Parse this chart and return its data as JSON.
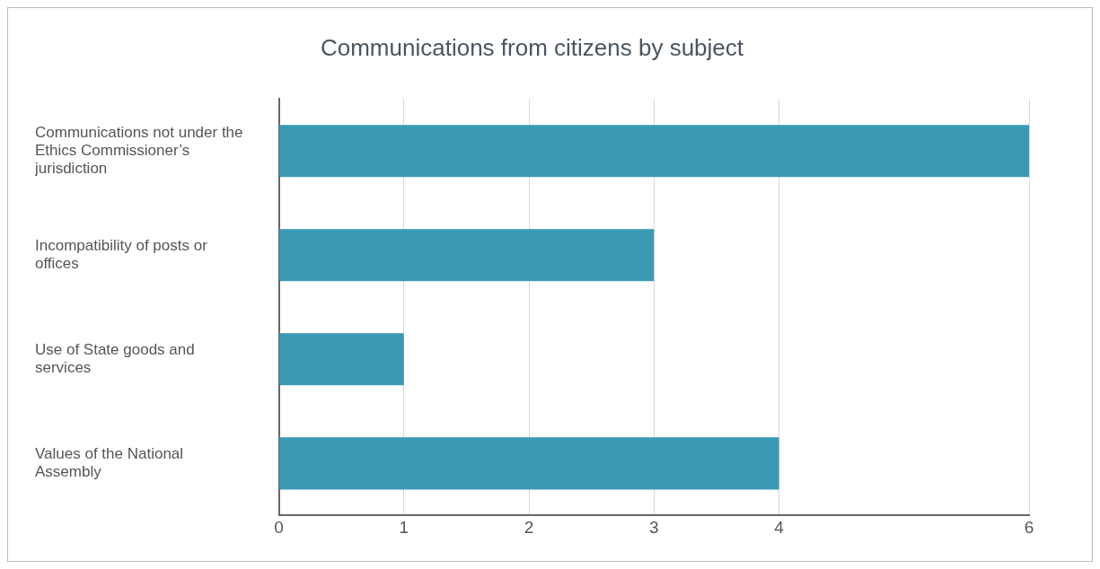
{
  "chart_data": {
    "type": "bar",
    "orientation": "horizontal",
    "title": "Communications from citizens by subject",
    "categories": [
      "Communications not under the Ethics Commissioner’s jurisdiction",
      "Incompatibility of posts or offices",
      "Use of State goods and services",
      "Values of the National Assembly"
    ],
    "values": [
      6,
      3,
      1,
      4
    ],
    "color": "#3a9ab3",
    "xlim": [
      0,
      6
    ],
    "xticks": [
      0,
      1,
      2,
      3,
      4,
      6
    ],
    "grid": "x",
    "legend": false
  }
}
